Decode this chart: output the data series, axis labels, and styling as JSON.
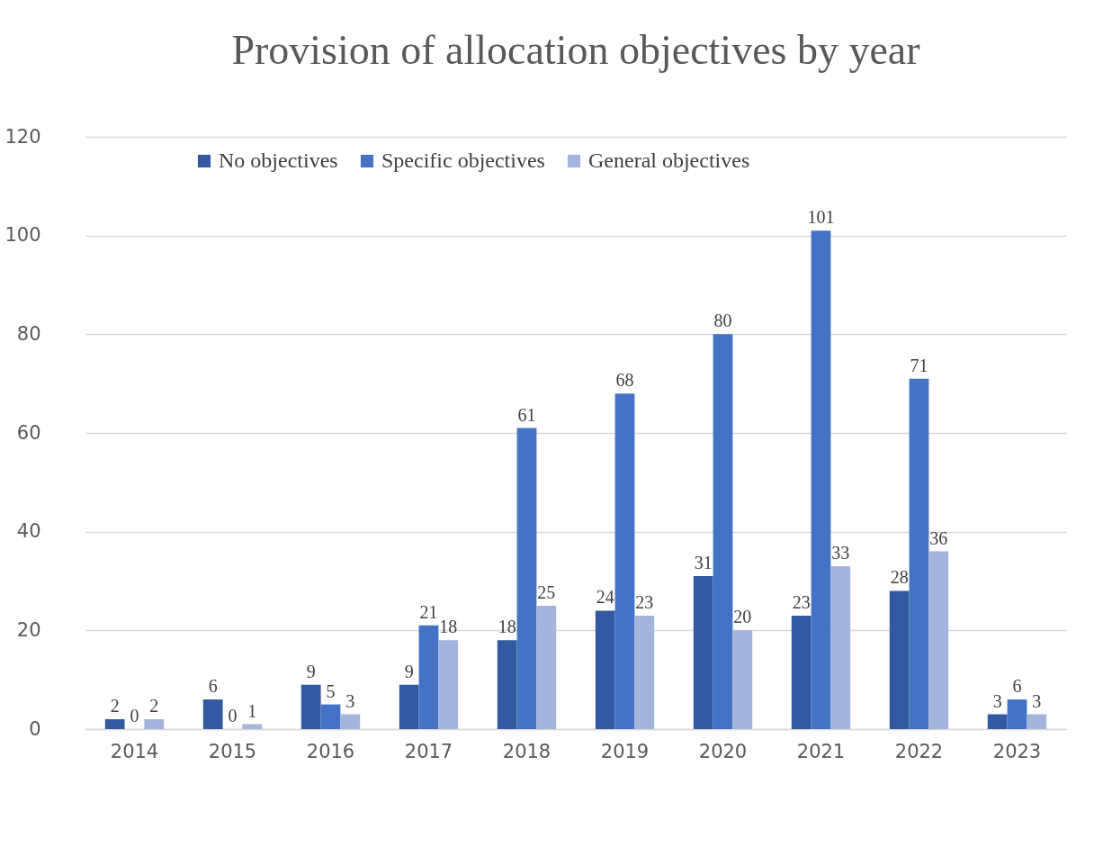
{
  "chart_data": {
    "type": "bar",
    "title": "Provision of allocation objectives by year",
    "categories": [
      "2014",
      "2015",
      "2016",
      "2017",
      "2018",
      "2019",
      "2020",
      "2021",
      "2022",
      "2023"
    ],
    "series": [
      {
        "name": "No objectives",
        "color": "#335aa1",
        "values": [
          2,
          6,
          9,
          9,
          18,
          24,
          31,
          23,
          28,
          3
        ]
      },
      {
        "name": "Specific objectives",
        "color": "#4472c4",
        "values": [
          0,
          0,
          5,
          21,
          61,
          68,
          80,
          101,
          71,
          6
        ]
      },
      {
        "name": "General objectives",
        "color": "#a5b4dc",
        "values": [
          2,
          1,
          3,
          18,
          25,
          23,
          20,
          33,
          36,
          3
        ]
      }
    ],
    "ylim": [
      0,
      120
    ],
    "yticks": [
      0,
      20,
      40,
      60,
      80,
      100,
      120
    ],
    "grid": "y",
    "legend": "top",
    "data_labels": true
  }
}
